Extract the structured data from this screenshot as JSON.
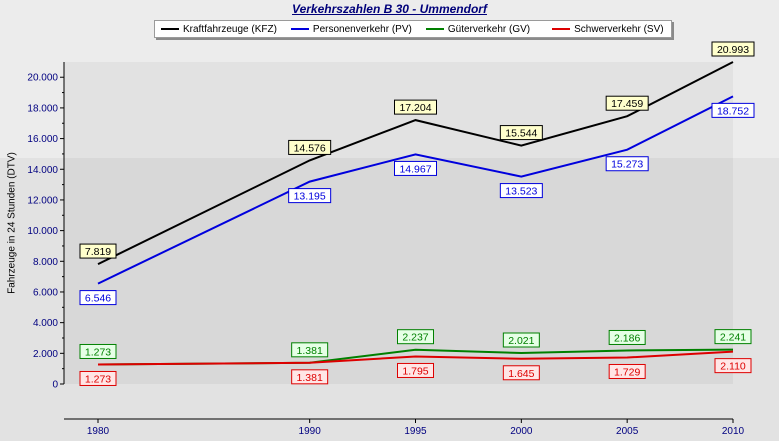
{
  "chart_data": {
    "type": "line",
    "title": "Verkehrszahlen B 30 - Ummendorf",
    "xlabel": "",
    "ylabel": "Fahrzeuge in 24 Stunden (DTV)",
    "x": [
      1980,
      1990,
      1995,
      2000,
      2005,
      2010
    ],
    "x_tick_labels": [
      "1980",
      "1990",
      "1995",
      "2000",
      "2005",
      "2010"
    ],
    "ylim": [
      0,
      20993
    ],
    "y_ticks": [
      0,
      2000,
      4000,
      6000,
      8000,
      10000,
      12000,
      14000,
      16000,
      18000,
      20000
    ],
    "y_tick_labels": [
      "0",
      "2.000",
      "4.000",
      "6.000",
      "8.000",
      "10.000",
      "12.000",
      "14.000",
      "16.000",
      "18.000",
      "20.000"
    ],
    "grid": false,
    "legend_position": "top",
    "series": [
      {
        "name": "Kraftfahrzeuge (KFZ)",
        "color": "#000000",
        "label_bg": "#ffffcc",
        "label_side": "above",
        "values": [
          7819,
          14576,
          17204,
          15544,
          17459,
          20993
        ],
        "labels": [
          "7.819",
          "14.576",
          "17.204",
          "15.544",
          "17.459",
          "20.993"
        ]
      },
      {
        "name": "Personenverkehr (PV)",
        "color": "#0000dd",
        "label_bg": "#ffffff",
        "label_side": "below",
        "values": [
          6546,
          13195,
          14967,
          13523,
          15273,
          18752
        ],
        "labels": [
          "6.546",
          "13.195",
          "14.967",
          "13.523",
          "15.273",
          "18.752"
        ]
      },
      {
        "name": "Güterverkehr (GV)",
        "color": "#008000",
        "label_bg": "#e6ffe6",
        "label_side": "above",
        "values": [
          1273,
          1381,
          2237,
          2021,
          2186,
          2241
        ],
        "labels": [
          "1.273",
          "1.381",
          "2.237",
          "2.021",
          "2.186",
          "2.241"
        ]
      },
      {
        "name": "Schwerverkehr (SV)",
        "color": "#dd0000",
        "label_bg": "#ffe6e6",
        "label_side": "below",
        "values": [
          1273,
          1381,
          1795,
          1645,
          1729,
          2110
        ],
        "labels": [
          "1.273",
          "1.381",
          "1.795",
          "1.645",
          "1.729",
          "2.110"
        ]
      }
    ]
  }
}
